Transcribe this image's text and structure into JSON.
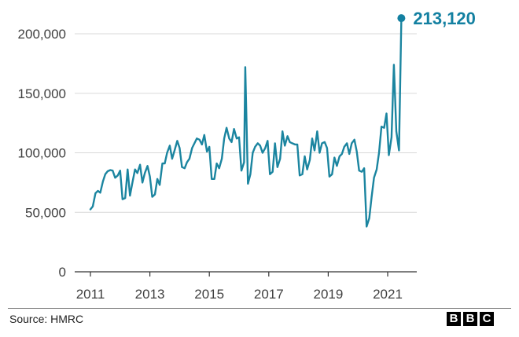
{
  "chart_data": {
    "type": "line",
    "title": "",
    "xlabel": "",
    "ylabel": "",
    "ylim": [
      0,
      220000
    ],
    "xlim": [
      2010.75,
      2022.1
    ],
    "y_ticks": [
      {
        "value": 0,
        "label": "0"
      },
      {
        "value": 50000,
        "label": "50,000"
      },
      {
        "value": 100000,
        "label": "100,000"
      },
      {
        "value": 150000,
        "label": "150,000"
      },
      {
        "value": 200000,
        "label": "200,000"
      }
    ],
    "x_ticks": [
      {
        "value": 2011,
        "label": "2011"
      },
      {
        "value": 2013,
        "label": "2013"
      },
      {
        "value": 2015,
        "label": "2015"
      },
      {
        "value": 2017,
        "label": "2017"
      },
      {
        "value": 2019,
        "label": "2019"
      },
      {
        "value": 2021,
        "label": "2021"
      }
    ],
    "grid": "horizontal",
    "line_color": "#1b85a0",
    "end_point_color": "#1380a1",
    "end_label": "213,120",
    "series": [
      {
        "values": [
          [
            2011.0,
            52500
          ],
          [
            2011.08,
            55000
          ],
          [
            2011.17,
            66000
          ],
          [
            2011.25,
            68000
          ],
          [
            2011.33,
            66500
          ],
          [
            2011.42,
            76000
          ],
          [
            2011.5,
            82000
          ],
          [
            2011.58,
            84500
          ],
          [
            2011.67,
            85500
          ],
          [
            2011.75,
            85000
          ],
          [
            2011.83,
            79000
          ],
          [
            2011.92,
            81000
          ],
          [
            2012.0,
            85000
          ],
          [
            2012.08,
            61000
          ],
          [
            2012.17,
            62000
          ],
          [
            2012.25,
            86000
          ],
          [
            2012.33,
            64000
          ],
          [
            2012.42,
            76000
          ],
          [
            2012.5,
            86000
          ],
          [
            2012.58,
            83000
          ],
          [
            2012.67,
            90000
          ],
          [
            2012.75,
            75000
          ],
          [
            2012.83,
            83000
          ],
          [
            2012.92,
            89000
          ],
          [
            2013.0,
            80000
          ],
          [
            2013.08,
            63000
          ],
          [
            2013.17,
            65000
          ],
          [
            2013.25,
            78000
          ],
          [
            2013.33,
            73000
          ],
          [
            2013.42,
            91000
          ],
          [
            2013.5,
            91000
          ],
          [
            2013.58,
            100000
          ],
          [
            2013.67,
            106000
          ],
          [
            2013.75,
            95000
          ],
          [
            2013.83,
            102000
          ],
          [
            2013.92,
            110000
          ],
          [
            2014.0,
            104000
          ],
          [
            2014.08,
            88000
          ],
          [
            2014.17,
            87000
          ],
          [
            2014.25,
            92000
          ],
          [
            2014.33,
            95000
          ],
          [
            2014.42,
            104000
          ],
          [
            2014.5,
            108000
          ],
          [
            2014.58,
            112000
          ],
          [
            2014.67,
            111000
          ],
          [
            2014.75,
            107000
          ],
          [
            2014.83,
            115000
          ],
          [
            2014.92,
            101000
          ],
          [
            2015.0,
            105000
          ],
          [
            2015.08,
            78000
          ],
          [
            2015.17,
            78000
          ],
          [
            2015.25,
            91000
          ],
          [
            2015.33,
            87000
          ],
          [
            2015.42,
            95000
          ],
          [
            2015.5,
            112000
          ],
          [
            2015.58,
            121000
          ],
          [
            2015.67,
            112000
          ],
          [
            2015.75,
            109000
          ],
          [
            2015.83,
            120000
          ],
          [
            2015.92,
            112000
          ],
          [
            2016.0,
            113000
          ],
          [
            2016.08,
            85000
          ],
          [
            2016.17,
            92000
          ],
          [
            2016.21,
            172000
          ],
          [
            2016.3,
            74000
          ],
          [
            2016.38,
            82000
          ],
          [
            2016.46,
            100000
          ],
          [
            2016.54,
            105000
          ],
          [
            2016.63,
            108000
          ],
          [
            2016.71,
            106000
          ],
          [
            2016.79,
            100000
          ],
          [
            2016.88,
            104000
          ],
          [
            2016.96,
            110000
          ],
          [
            2017.04,
            82000
          ],
          [
            2017.13,
            84000
          ],
          [
            2017.21,
            108000
          ],
          [
            2017.29,
            88000
          ],
          [
            2017.38,
            95000
          ],
          [
            2017.46,
            118000
          ],
          [
            2017.54,
            106000
          ],
          [
            2017.63,
            114000
          ],
          [
            2017.71,
            109000
          ],
          [
            2017.79,
            108000
          ],
          [
            2017.88,
            107000
          ],
          [
            2017.96,
            107000
          ],
          [
            2018.04,
            81000
          ],
          [
            2018.13,
            82000
          ],
          [
            2018.21,
            97000
          ],
          [
            2018.29,
            86000
          ],
          [
            2018.38,
            94000
          ],
          [
            2018.46,
            112000
          ],
          [
            2018.54,
            102000
          ],
          [
            2018.63,
            118000
          ],
          [
            2018.71,
            100000
          ],
          [
            2018.79,
            108000
          ],
          [
            2018.88,
            109000
          ],
          [
            2018.96,
            104000
          ],
          [
            2019.04,
            80000
          ],
          [
            2019.13,
            82000
          ],
          [
            2019.21,
            96000
          ],
          [
            2019.29,
            89000
          ],
          [
            2019.38,
            97000
          ],
          [
            2019.46,
            99000
          ],
          [
            2019.54,
            105000
          ],
          [
            2019.63,
            108000
          ],
          [
            2019.71,
            99000
          ],
          [
            2019.79,
            108000
          ],
          [
            2019.88,
            111000
          ],
          [
            2019.96,
            101000
          ],
          [
            2020.04,
            85000
          ],
          [
            2020.13,
            84000
          ],
          [
            2020.21,
            87000
          ],
          [
            2020.29,
            38000
          ],
          [
            2020.38,
            45000
          ],
          [
            2020.46,
            63000
          ],
          [
            2020.54,
            79000
          ],
          [
            2020.63,
            86000
          ],
          [
            2020.71,
            100000
          ],
          [
            2020.79,
            122000
          ],
          [
            2020.88,
            121000
          ],
          [
            2020.96,
            133000
          ],
          [
            2021.04,
            98000
          ],
          [
            2021.13,
            113000
          ],
          [
            2021.21,
            174000
          ],
          [
            2021.29,
            118000
          ],
          [
            2021.38,
            102000
          ],
          [
            2021.46,
            213120
          ]
        ]
      }
    ],
    "source": "Source: HMRC",
    "logo": "BBC"
  }
}
